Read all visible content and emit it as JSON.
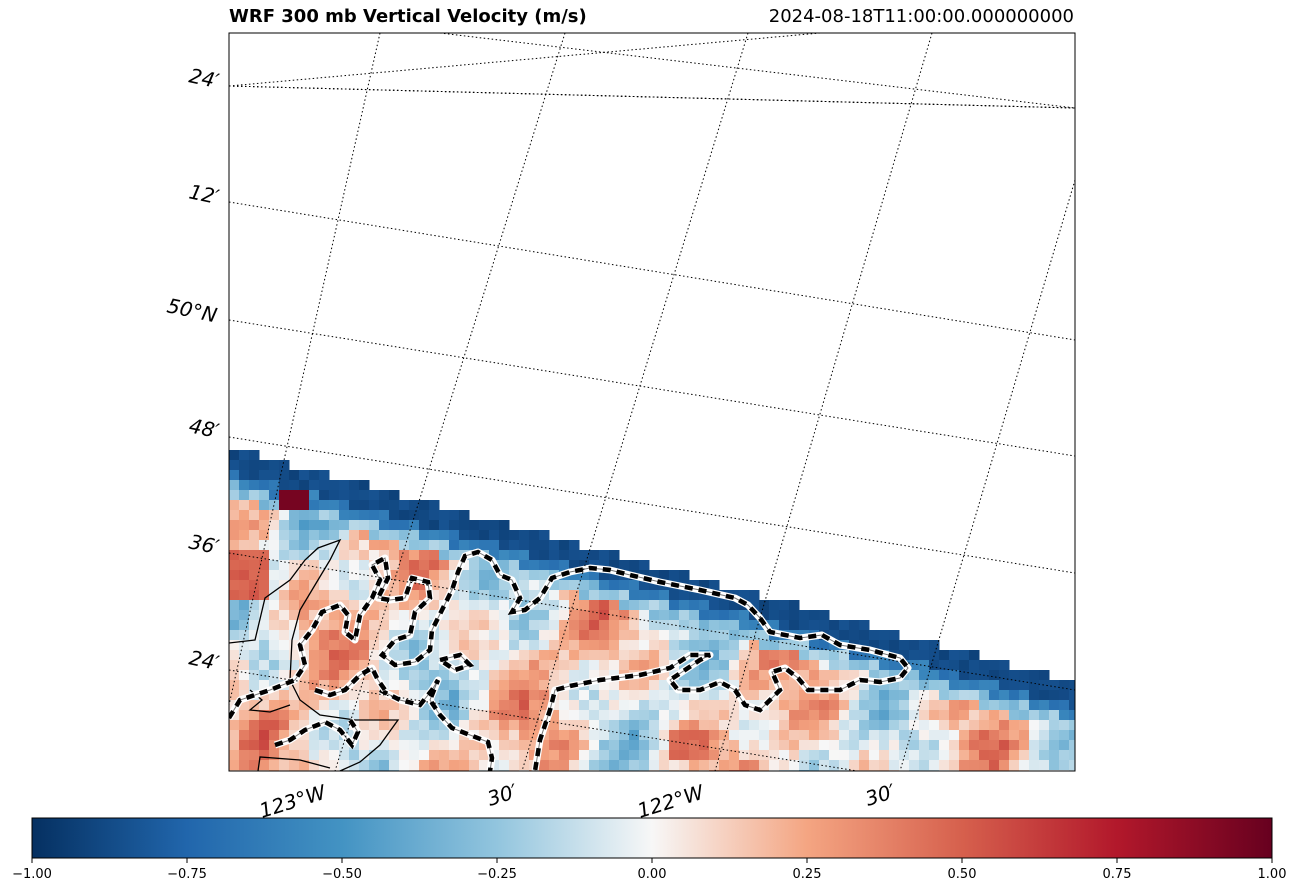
{
  "header": {
    "title": "WRF 300 mb Vertical Velocity (m/s)",
    "timestamp": "2024-08-18T11:00:00.000000000"
  },
  "chart_data": {
    "type": "heatmap",
    "title": "WRF 300 mb Vertical Velocity (m/s)",
    "subtitle": "2024-08-18T11:00:00.000000000",
    "projection": "map",
    "grid": "dotted graticule",
    "lat_tick_labels": [
      "24′",
      "12′",
      "50°N",
      "48′",
      "36′",
      "24′"
    ],
    "lon_tick_labels": [
      "123°W",
      "30′",
      "122°W",
      "30′"
    ],
    "colorbar": {
      "colormap": "RdBu_r",
      "vmin": -1.0,
      "vmax": 1.0,
      "ticks": [
        "−1.00",
        "−0.75",
        "−0.50",
        "−0.25",
        "0.00",
        "0.25",
        "0.50",
        "0.75",
        "1.00"
      ],
      "colors": [
        "#053061",
        "#2166ac",
        "#4393c3",
        "#92c5de",
        "#f7f7f7",
        "#f4a582",
        "#d6604d",
        "#b2182b",
        "#67001f"
      ]
    },
    "field_notes": {
      "upper_region": "no data",
      "data_edge_band": -0.9,
      "hotspot_max": 0.95,
      "background_range": [
        -0.35,
        0.4
      ]
    }
  }
}
